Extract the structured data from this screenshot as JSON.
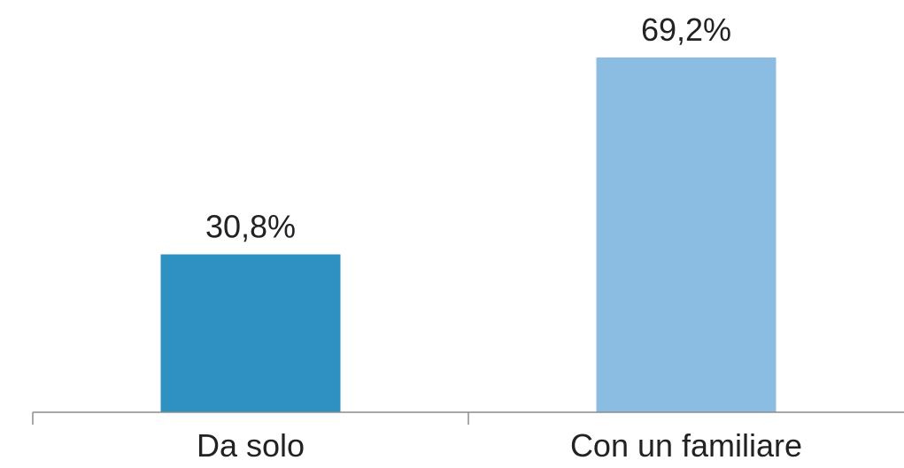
{
  "chart_data": {
    "type": "bar",
    "title": "",
    "xlabel": "",
    "ylabel": "",
    "categories": [
      "Da solo",
      "Con un familiare"
    ],
    "values": [
      30.8,
      69.2
    ],
    "value_labels": [
      "30,8%",
      "69,2%"
    ],
    "colors": [
      "#2e91c2",
      "#8bbde3"
    ],
    "ylim": [
      0,
      69.2
    ],
    "grid": false,
    "legend": "none"
  }
}
